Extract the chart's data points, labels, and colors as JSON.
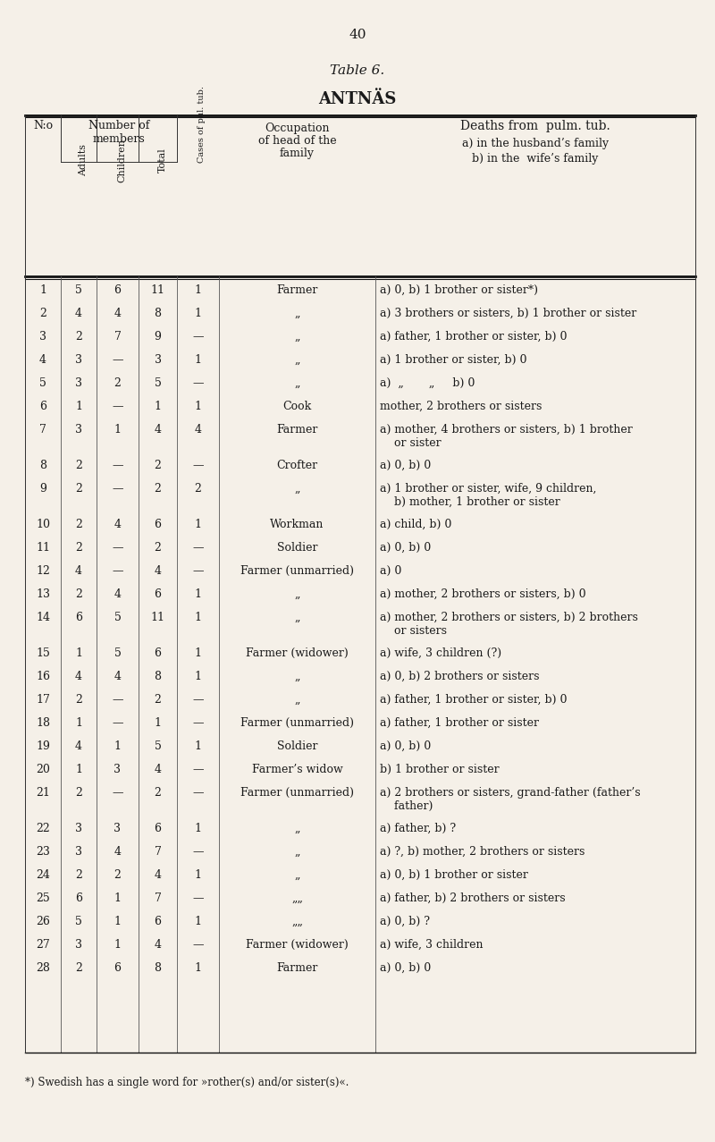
{
  "page_number": "40",
  "table_title": "Table 6.",
  "table_subtitle": "ANTNÄS",
  "background_color": "#f5f0e8",
  "text_color": "#1a1a1a",
  "col_header_1": "N:o",
  "col_header_2a": "Number of",
  "col_header_2b": "members",
  "col_header_3": "Adults",
  "col_header_4": "Children",
  "col_header_5": "Total",
  "col_header_6": "Cases of pul. tub.",
  "col_header_7a": "Occupation",
  "col_header_7b": "of head of the",
  "col_header_7c": "family",
  "col_header_8a": "Deaths from pulm. tub.",
  "col_header_8b": "a) in the husband’s family",
  "col_header_8c": "b) in the wife’s family",
  "rows": [
    [
      1,
      "5",
      "6",
      "11",
      "1",
      "Farmer",
      "a) 0, b) 1 brother or sister*)"
    ],
    [
      2,
      "4",
      "4",
      "8",
      "1",
      "„",
      "a) 3 brothers or sisters, b) 1 brother or sister"
    ],
    [
      3,
      "2",
      "7",
      "9",
      "—",
      "„",
      "a) father, 1 brother or sister, b) 0"
    ],
    [
      4,
      "3",
      "—",
      "3",
      "1",
      "„",
      "a) 1 brother or sister, b) 0"
    ],
    [
      5,
      "3",
      "2",
      "5",
      "—",
      "„",
      "a)  „       „     b) 0"
    ],
    [
      6,
      "1",
      "—",
      "1",
      "1",
      "Cook",
      "mother, 2 brothers or sisters"
    ],
    [
      7,
      "3",
      "1",
      "4",
      "4",
      "Farmer",
      "a) mother, 4 brothers or sisters, b) 1 brother\n    or sister"
    ],
    [
      8,
      "2",
      "—",
      "2",
      "—",
      "Crofter",
      "a) 0, b) 0"
    ],
    [
      9,
      "2",
      "—",
      "2",
      "2",
      "„",
      "a) 1 brother or sister, wife, 9 children,\n    b) mother, 1 brother or sister"
    ],
    [
      10,
      "2",
      "4",
      "6",
      "1",
      "Workman",
      "a) child, b) 0"
    ],
    [
      11,
      "2",
      "—",
      "2",
      "—",
      "Soldier",
      "a) 0, b) 0"
    ],
    [
      12,
      "4",
      "—",
      "4",
      "—",
      "Farmer (unmarried)",
      "a) 0"
    ],
    [
      13,
      "2",
      "4",
      "6",
      "1",
      "„",
      "a) mother, 2 brothers or sisters, b) 0"
    ],
    [
      14,
      "6",
      "5",
      "11",
      "1",
      "„",
      "a) mother, 2 brothers or sisters, b) 2 brothers\n    or sisters"
    ],
    [
      15,
      "1",
      "5",
      "6",
      "1",
      "Farmer (widower)",
      "a) wife, 3 children (?)"
    ],
    [
      16,
      "4",
      "4",
      "8",
      "1",
      "„",
      "a) 0, b) 2 brothers or sisters"
    ],
    [
      17,
      "2",
      "—",
      "2",
      "—",
      "„",
      "a) father, 1 brother or sister, b) 0"
    ],
    [
      18,
      "1",
      "—",
      "1",
      "—",
      "Farmer (unmarried)",
      "a) father, 1 brother or sister"
    ],
    [
      19,
      "4",
      "1",
      "5",
      "1",
      "Soldier",
      "a) 0, b) 0"
    ],
    [
      20,
      "1",
      "3",
      "4",
      "—",
      "Farmer’s widow",
      "b) 1 brother or sister"
    ],
    [
      21,
      "2",
      "—",
      "2",
      "—",
      "Farmer (unmarried)",
      "a) 2 brothers or sisters, grand-father (father’s\n    father)"
    ],
    [
      22,
      "3",
      "3",
      "6",
      "1",
      "„",
      "a) father, b) ?"
    ],
    [
      23,
      "3",
      "4",
      "7",
      "—",
      "„",
      "a) ?, b) mother, 2 brothers or sisters"
    ],
    [
      24,
      "2",
      "2",
      "4",
      "1",
      "„",
      "a) 0, b) 1 brother or sister"
    ],
    [
      25,
      "6",
      "1",
      "7",
      "—",
      "„„",
      "a) father, b) 2 brothers or sisters"
    ],
    [
      26,
      "5",
      "1",
      "6",
      "1",
      "„„",
      "a) 0, b) ?"
    ],
    [
      27,
      "3",
      "1",
      "4",
      "—",
      "Farmer (widower)",
      "a) wife, 3 children"
    ],
    [
      28,
      "2",
      "6",
      "8",
      "1",
      "Farmer",
      "a) 0, b) 0"
    ]
  ],
  "footnote": "*) Swedish has a single word for »rother(s) and/or sister(s)«.",
  "font_family": "serif"
}
